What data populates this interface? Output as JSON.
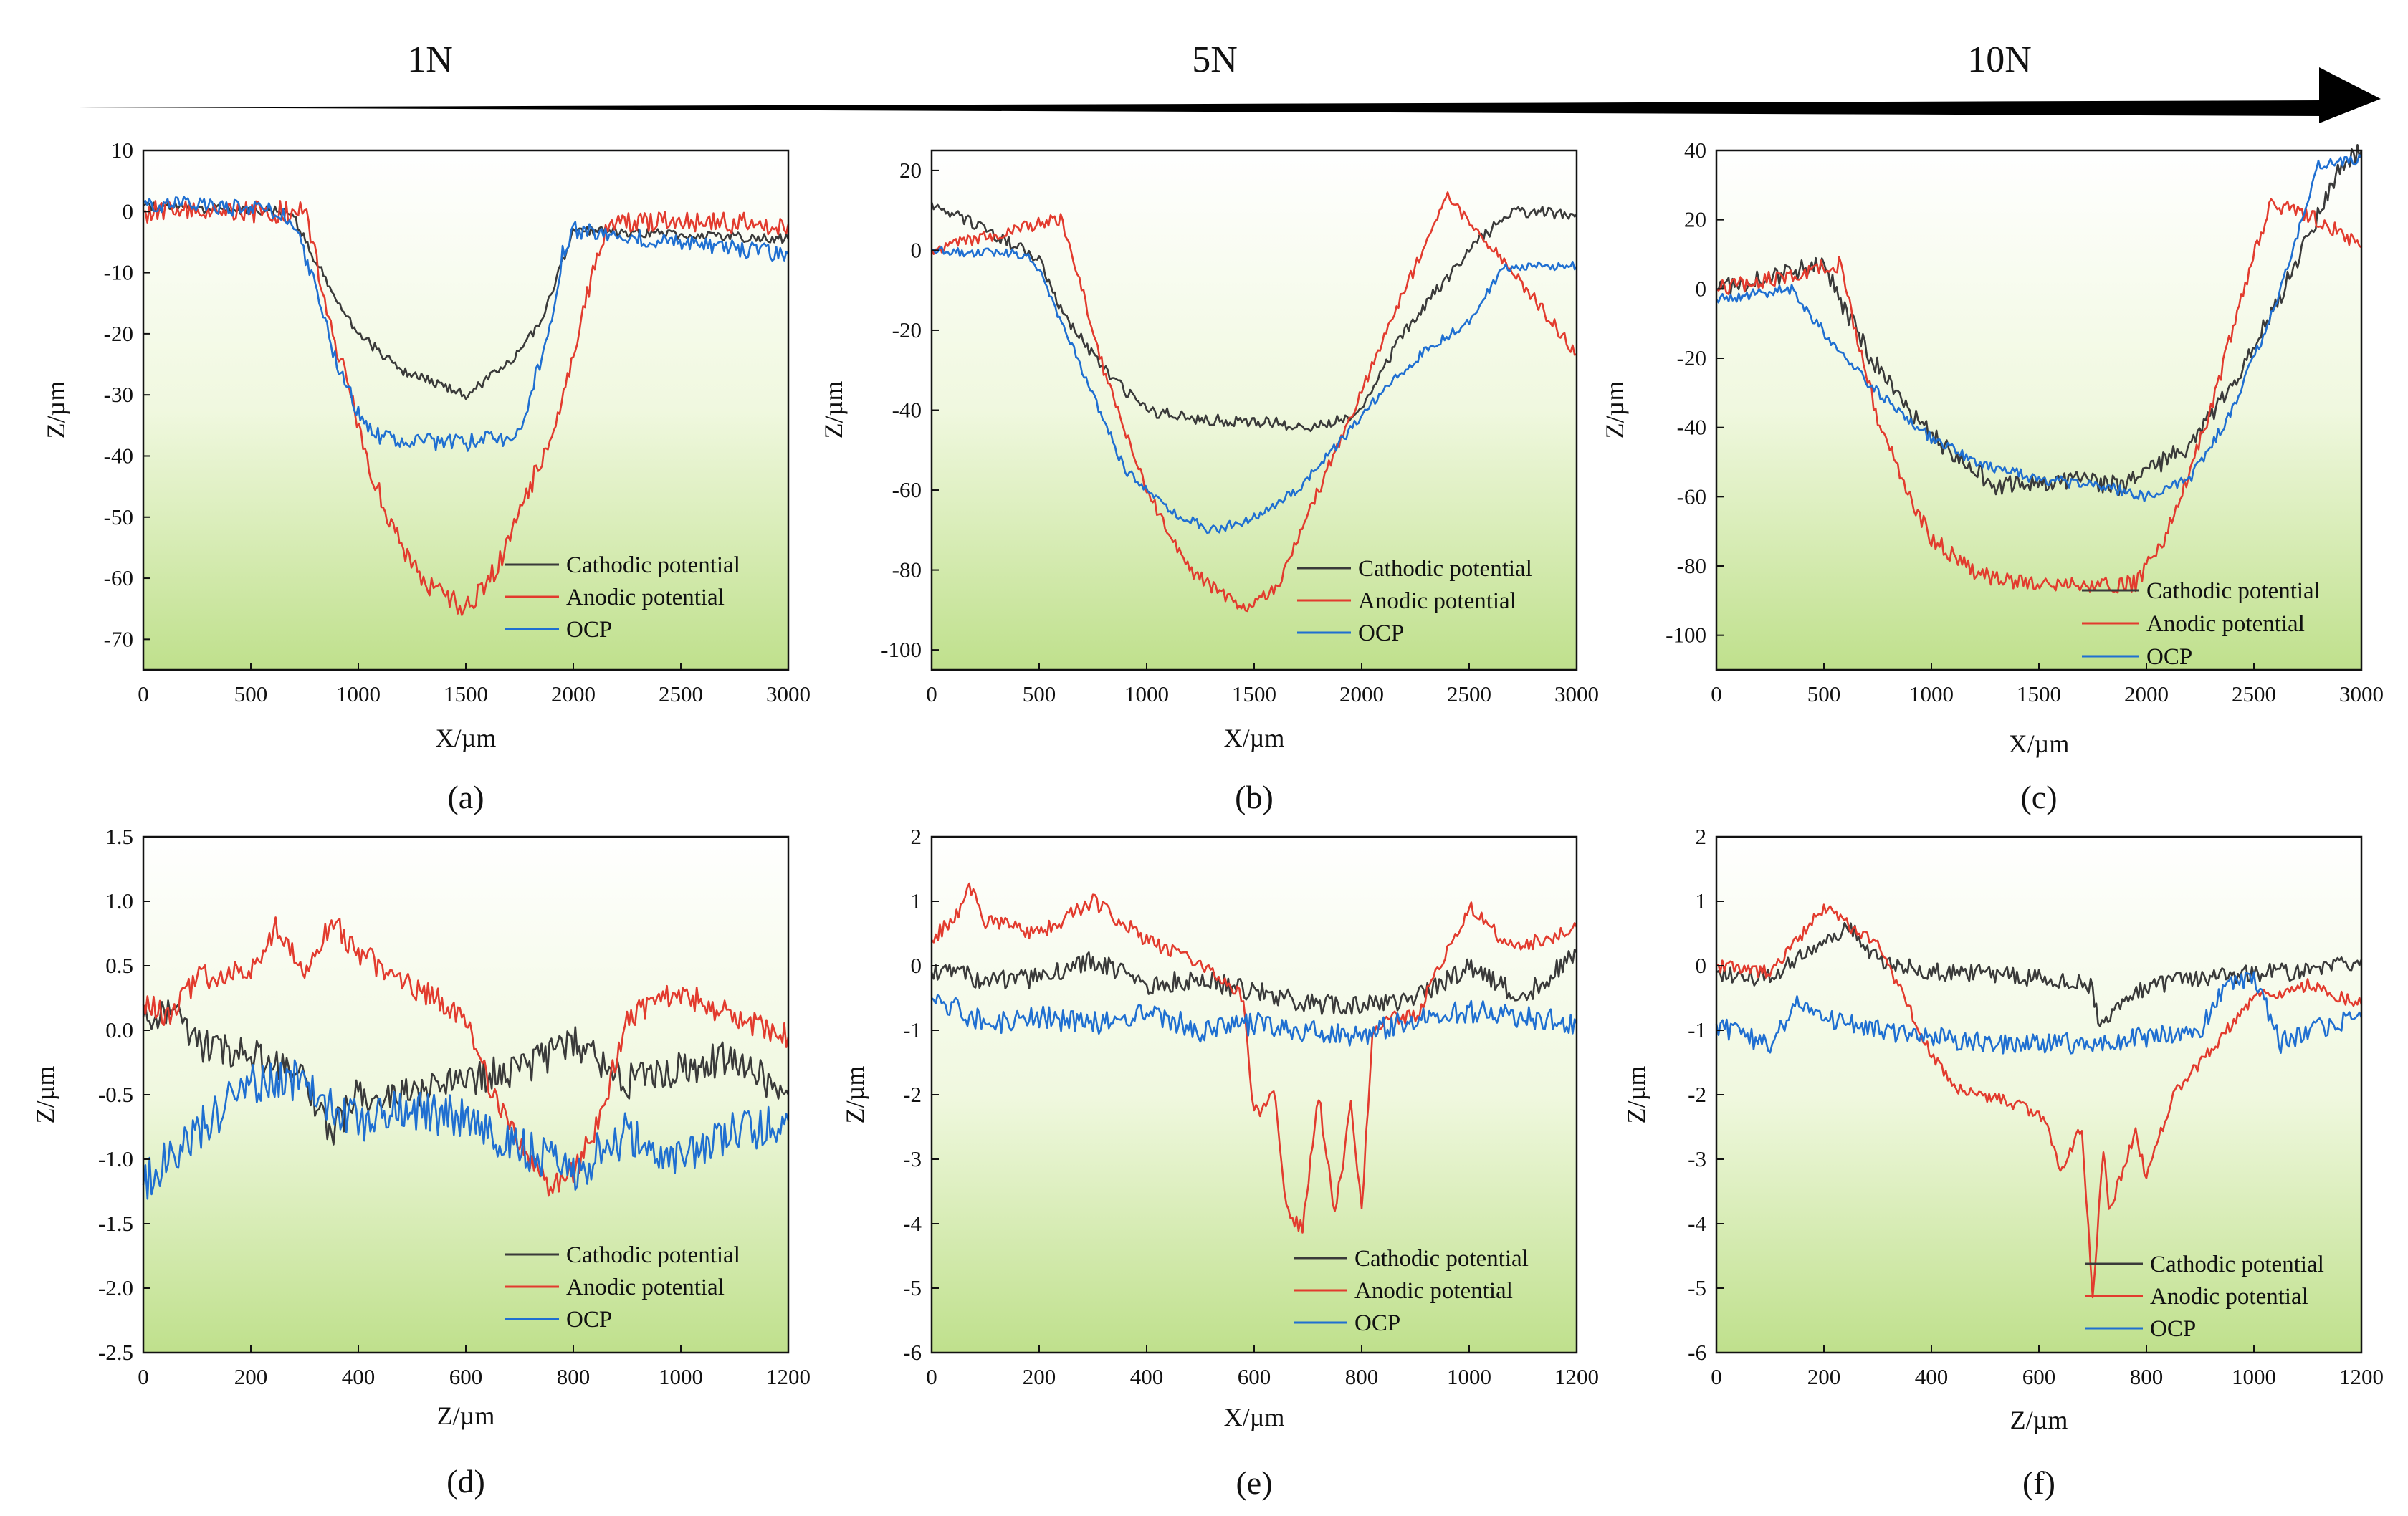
{
  "load_labels": [
    "1N",
    "5N",
    "10N"
  ],
  "legend": [
    {
      "name": "Cathodic potential",
      "color": "#3a3a3a"
    },
    {
      "name": "Anodic potential",
      "color": "#e23b2e"
    },
    {
      "name": "OCP",
      "color": "#1f6fd1"
    }
  ],
  "legend_b": [
    "Cathodic potential",
    "Anodic  potential",
    "OCP"
  ],
  "chart_data": [
    {
      "id": "a",
      "type": "line",
      "label": "(a)",
      "xlabel": "X/µm",
      "ylabel": "Z/µm",
      "xlim": [
        0,
        3000
      ],
      "ylim": [
        -75,
        10
      ],
      "xticks": [
        0,
        500,
        1000,
        1500,
        2000,
        2500,
        3000
      ],
      "yticks": [
        10,
        0,
        -10,
        -20,
        -30,
        -40,
        -50,
        -60,
        -70
      ],
      "noise": [
        0.8,
        1.8,
        1.4
      ],
      "series": [
        {
          "name": "Cathodic potential",
          "x": [
            0,
            650,
            700,
            800,
            1000,
            1200,
            1500,
            1700,
            1850,
            1950,
            2000,
            3000
          ],
          "y": [
            1,
            0,
            -1,
            -8,
            -20,
            -26,
            -30,
            -25,
            -18,
            -8,
            -3,
            -4.5
          ]
        },
        {
          "name": "Anodic potential",
          "x": [
            0,
            730,
            750,
            900,
            1050,
            1200,
            1350,
            1500,
            1650,
            1800,
            1900,
            2000,
            2100,
            2150,
            2200,
            3000
          ],
          "y": [
            0,
            0,
            0,
            -22,
            -42,
            -55,
            -62,
            -65,
            -58,
            -45,
            -36,
            -24,
            -8,
            -3,
            -1.5,
            -2
          ]
        },
        {
          "name": "OCP",
          "x": [
            0,
            650,
            700,
            800,
            900,
            1000,
            1100,
            1500,
            1600,
            1700,
            1750,
            1900,
            1950,
            2000,
            3000
          ],
          "y": [
            1.5,
            0,
            -2,
            -12,
            -25,
            -33,
            -37,
            -38,
            -37,
            -37,
            -36,
            -18,
            -7,
            -3,
            -7
          ]
        }
      ]
    },
    {
      "id": "b",
      "type": "line",
      "label": "(b)",
      "xlabel": "X/µm",
      "ylabel": "Z/µm",
      "xlim": [
        0,
        3000
      ],
      "ylim": [
        -105,
        25
      ],
      "xticks": [
        0,
        500,
        1000,
        1500,
        2000,
        2500,
        3000
      ],
      "yticks": [
        20,
        0,
        -20,
        -40,
        -60,
        -80,
        -100
      ],
      "noise": [
        1.5,
        1.6,
        1.2
      ],
      "series": [
        {
          "name": "Cathodic potential",
          "x": [
            0,
            500,
            600,
            800,
            1000,
            1200,
            1500,
            1800,
            2000,
            2200,
            2500,
            2700,
            3000
          ],
          "y": [
            12,
            -2,
            -15,
            -30,
            -40,
            -42,
            -43,
            -44,
            -40,
            -20,
            0,
            10,
            9
          ]
        },
        {
          "name": "Anodic potential",
          "x": [
            0,
            600,
            650,
            800,
            1000,
            1200,
            1450,
            1600,
            1800,
            2000,
            2200,
            2400,
            2700,
            3000
          ],
          "y": [
            0,
            8,
            0,
            -30,
            -60,
            -80,
            -90,
            -85,
            -60,
            -35,
            -10,
            13,
            -5,
            -26
          ]
        },
        {
          "name": "OCP",
          "x": [
            0,
            450,
            500,
            700,
            900,
            1100,
            1300,
            1500,
            1700,
            1900,
            2100,
            2300,
            2500,
            2650,
            2700,
            3000
          ],
          "y": [
            0,
            -1,
            -5,
            -30,
            -55,
            -65,
            -70,
            -67,
            -60,
            -48,
            -35,
            -25,
            -18,
            -5,
            -4,
            -4
          ]
        }
      ]
    },
    {
      "id": "c",
      "type": "line",
      "label": "(c)",
      "xlabel": "X/µm",
      "ylabel": "Z/µm",
      "xlim": [
        0,
        3000
      ],
      "ylim": [
        -110,
        40
      ],
      "xticks": [
        0,
        500,
        1000,
        1500,
        2000,
        2500,
        3000
      ],
      "yticks": [
        40,
        20,
        0,
        -20,
        -40,
        -60,
        -80,
        -100
      ],
      "noise": [
        2.8,
        2.4,
        1.6
      ],
      "series": [
        {
          "name": "Cathodic potential",
          "x": [
            0,
            500,
            550,
            700,
            900,
            1100,
            1300,
            1600,
            1900,
            2200,
            2400,
            2600,
            2900,
            3000
          ],
          "y": [
            0,
            7,
            0,
            -18,
            -35,
            -48,
            -57,
            -55,
            -57,
            -45,
            -28,
            -5,
            35,
            40
          ]
        },
        {
          "name": "Anodic potential",
          "x": [
            0,
            580,
            600,
            750,
            900,
            1000,
            1200,
            1400,
            1700,
            1950,
            2000,
            2100,
            2300,
            2450,
            2580,
            2800,
            3000
          ],
          "y": [
            0,
            7,
            0,
            -38,
            -60,
            -72,
            -82,
            -85,
            -86,
            -85,
            -80,
            -70,
            -35,
            0,
            25,
            20,
            12
          ]
        },
        {
          "name": "OCP",
          "x": [
            0,
            350,
            400,
            600,
            800,
            1000,
            1200,
            1500,
            1800,
            2000,
            2200,
            2400,
            2600,
            2750,
            2800,
            2950,
            3000
          ],
          "y": [
            -3,
            0,
            -5,
            -20,
            -33,
            -43,
            -50,
            -55,
            -57,
            -60,
            -55,
            -35,
            -5,
            25,
            36,
            37,
            38
          ]
        }
      ]
    },
    {
      "id": "d",
      "type": "line",
      "label": "(d)",
      "xlabel": "Z/µm",
      "ylabel": "Z/µm",
      "xlim": [
        0,
        1200
      ],
      "ylim": [
        -2.5,
        1.5
      ],
      "xticks": [
        0,
        200,
        400,
        600,
        800,
        1000,
        1200
      ],
      "yticks": [
        1.5,
        1.0,
        0.5,
        0.0,
        -0.5,
        -1.0,
        -1.5,
        -2.0,
        -2.5
      ],
      "ytick_labels": [
        "1.5",
        "1.0",
        "0.5",
        "0.0",
        "-0.5",
        "-1.0",
        "-1.5",
        "-2.0",
        "-2.5"
      ],
      "noise": [
        0.14,
        0.1,
        0.17
      ],
      "series": [
        {
          "name": "Cathodic potential",
          "x": [
            0,
            50,
            100,
            200,
            300,
            350,
            400,
            500,
            600,
            700,
            800,
            900,
            1000,
            1100,
            1200
          ],
          "y": [
            0.1,
            0.2,
            -0.1,
            -0.2,
            -0.4,
            -0.8,
            -0.5,
            -0.5,
            -0.4,
            -0.3,
            -0.1,
            -0.4,
            -0.3,
            -0.2,
            -0.5
          ]
        },
        {
          "name": "Anodic potential",
          "x": [
            0,
            50,
            100,
            200,
            250,
            300,
            350,
            400,
            500,
            600,
            650,
            700,
            750,
            800,
            850,
            900,
            1000,
            1100,
            1200
          ],
          "y": [
            0.2,
            0.1,
            0.4,
            0.5,
            0.8,
            0.5,
            0.85,
            0.6,
            0.35,
            0.1,
            -0.5,
            -0.9,
            -1.2,
            -1.1,
            -0.7,
            0.1,
            0.3,
            0.1,
            -0.05
          ]
        },
        {
          "name": "OCP",
          "x": [
            0,
            50,
            100,
            200,
            300,
            400,
            500,
            600,
            700,
            800,
            900,
            1000,
            1100,
            1200
          ],
          "y": [
            -1.2,
            -1.0,
            -0.8,
            -0.4,
            -0.4,
            -0.7,
            -0.6,
            -0.7,
            -0.9,
            -1.1,
            -0.8,
            -1.0,
            -0.8,
            -0.7
          ]
        }
      ]
    },
    {
      "id": "e",
      "type": "line",
      "label": "(e)",
      "xlabel": "X/µm",
      "ylabel": "Z/µm",
      "xlim": [
        0,
        1200
      ],
      "ylim": [
        -6,
        2
      ],
      "xticks": [
        0,
        200,
        400,
        600,
        800,
        1000,
        1200
      ],
      "yticks": [
        2,
        1,
        0,
        -1,
        -2,
        -3,
        -4,
        -5,
        -6
      ],
      "noise": [
        0.16,
        0.12,
        0.18
      ],
      "series": [
        {
          "name": "Cathodic potential",
          "x": [
            0,
            100,
            200,
            300,
            400,
            500,
            600,
            700,
            800,
            900,
            1000,
            1100,
            1200
          ],
          "y": [
            -0.1,
            -0.2,
            -0.2,
            0.1,
            -0.3,
            -0.2,
            -0.4,
            -0.6,
            -0.6,
            -0.5,
            0.0,
            -0.5,
            0.2
          ]
        },
        {
          "name": "Anodic potential",
          "x": [
            0,
            50,
            70,
            100,
            200,
            300,
            400,
            500,
            580,
            600,
            640,
            660,
            690,
            720,
            750,
            780,
            800,
            820,
            850,
            900,
            1000,
            1050,
            1100,
            1200
          ],
          "y": [
            0.4,
            0.8,
            1.2,
            0.7,
            0.5,
            1.0,
            0.4,
            0.0,
            -0.5,
            -2.3,
            -2.0,
            -3.8,
            -4.1,
            -2.0,
            -3.9,
            -2.2,
            -3.8,
            -1.0,
            -0.8,
            -0.8,
            0.9,
            0.5,
            0.3,
            0.6
          ]
        },
        {
          "name": "OCP",
          "x": [
            0,
            100,
            200,
            300,
            400,
            500,
            600,
            700,
            800,
            900,
            1000,
            1100,
            1200
          ],
          "y": [
            -0.5,
            -0.9,
            -0.8,
            -0.9,
            -0.7,
            -1.0,
            -0.9,
            -1.0,
            -1.1,
            -0.8,
            -0.7,
            -0.8,
            -0.9
          ]
        }
      ]
    },
    {
      "id": "f",
      "type": "line",
      "label": "(f)",
      "xlabel": "Z/µm",
      "ylabel": "Z/µm",
      "xlim": [
        0,
        1200
      ],
      "ylim": [
        -6,
        2
      ],
      "xticks": [
        0,
        200,
        400,
        600,
        800,
        1000,
        1200
      ],
      "yticks": [
        2,
        1,
        0,
        -1,
        -2,
        -3,
        -4,
        -5,
        -6
      ],
      "noise": [
        0.14,
        0.1,
        0.16
      ],
      "series": [
        {
          "name": "Cathodic potential",
          "x": [
            0,
            100,
            200,
            250,
            300,
            400,
            500,
            600,
            700,
            710,
            800,
            900,
            1000,
            1100,
            1200
          ],
          "y": [
            -0.1,
            -0.2,
            0.4,
            0.6,
            0.1,
            -0.1,
            -0.1,
            -0.2,
            -0.3,
            -0.9,
            -0.3,
            -0.2,
            -0.1,
            -0.1,
            0.1
          ]
        },
        {
          "name": "Anodic potential",
          "x": [
            0,
            100,
            200,
            250,
            300,
            350,
            400,
            450,
            500,
            600,
            620,
            640,
            680,
            700,
            720,
            730,
            780,
            800,
            850,
            1000,
            1100,
            1200
          ],
          "y": [
            0.0,
            -0.1,
            0.9,
            0.6,
            0.3,
            -0.5,
            -1.4,
            -1.9,
            -2.0,
            -2.3,
            -2.6,
            -3.2,
            -2.5,
            -5.2,
            -2.8,
            -3.8,
            -2.6,
            -3.3,
            -2.0,
            -0.5,
            -0.3,
            -0.6
          ]
        },
        {
          "name": "OCP",
          "x": [
            0,
            50,
            100,
            150,
            200,
            300,
            400,
            500,
            600,
            700,
            800,
            900,
            950,
            1000,
            1050,
            1100,
            1200
          ],
          "y": [
            -0.9,
            -1.1,
            -1.2,
            -0.6,
            -0.8,
            -1.0,
            -1.1,
            -1.2,
            -1.2,
            -1.2,
            -1.1,
            -1.0,
            -0.3,
            -0.2,
            -1.2,
            -1.0,
            -0.8
          ]
        }
      ]
    }
  ]
}
